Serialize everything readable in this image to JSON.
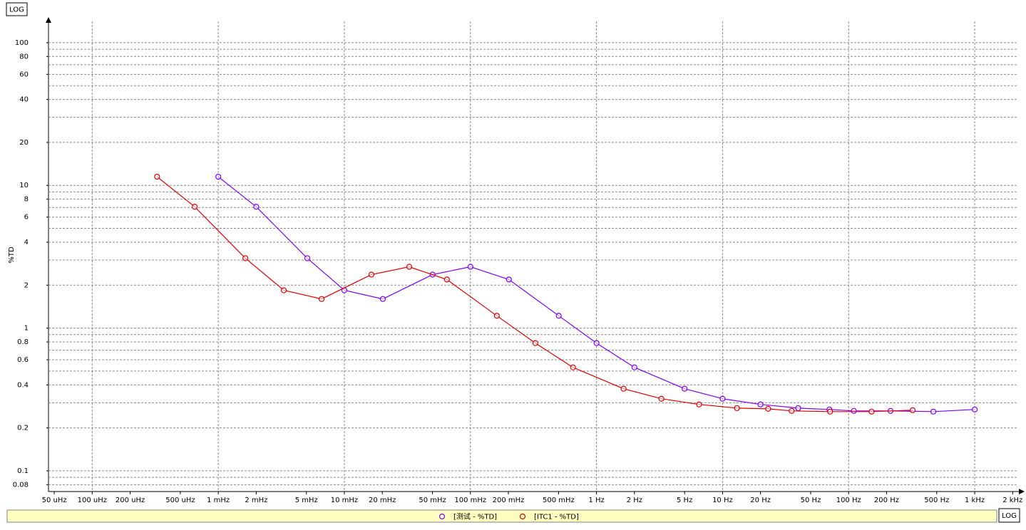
{
  "chart_data": {
    "type": "line",
    "y_label": "%TD",
    "y_scale_button": "LOG",
    "x_scale_button": "LOG",
    "xscale": "log",
    "yscale": "log",
    "grid": true,
    "xlim": [
      4.5e-05,
      2270
    ],
    "ylim": [
      0.0716,
      141
    ],
    "xticks": [
      {
        "value": 5e-05,
        "label": "50 uHz"
      },
      {
        "value": 0.0001,
        "label": "100 uHz"
      },
      {
        "value": 0.0002,
        "label": "200 uHz"
      },
      {
        "value": 0.0005,
        "label": "500 uHz"
      },
      {
        "value": 0.001,
        "label": "1 mHz"
      },
      {
        "value": 0.002,
        "label": "2 mHz"
      },
      {
        "value": 0.005,
        "label": "5 mHz"
      },
      {
        "value": 0.01,
        "label": "10 mHz"
      },
      {
        "value": 0.02,
        "label": "20 mHz"
      },
      {
        "value": 0.05,
        "label": "50 mHz"
      },
      {
        "value": 0.1,
        "label": "100 mHz"
      },
      {
        "value": 0.2,
        "label": "200 mHz"
      },
      {
        "value": 0.5,
        "label": "500 mHz"
      },
      {
        "value": 1,
        "label": "1 Hz"
      },
      {
        "value": 2,
        "label": "2 Hz"
      },
      {
        "value": 5,
        "label": "5 Hz"
      },
      {
        "value": 10,
        "label": "10 Hz"
      },
      {
        "value": 20,
        "label": "20 Hz"
      },
      {
        "value": 50,
        "label": "50 Hz"
      },
      {
        "value": 100,
        "label": "100 Hz"
      },
      {
        "value": 200,
        "label": "200 Hz"
      },
      {
        "value": 500,
        "label": "500 Hz"
      },
      {
        "value": 1000,
        "label": "1 kHz"
      },
      {
        "value": 2000,
        "label": "2 kHz"
      }
    ],
    "x_grid": [
      0.0001,
      0.001,
      0.01,
      0.1,
      1,
      10,
      100,
      1000
    ],
    "yticks": [
      100,
      80,
      60,
      40,
      20,
      10,
      8,
      6,
      4,
      2,
      1,
      0.8,
      0.6,
      0.4,
      0.2,
      0.1,
      0.08
    ],
    "y_minor_grid": [
      90,
      70,
      50,
      30,
      9,
      7,
      5,
      3,
      0.9,
      0.7,
      0.5,
      0.3,
      0.09
    ],
    "series": [
      {
        "name": "[测试 - %TD]",
        "color": "#7f00ff",
        "x": [
          0.001,
          0.002,
          0.00508,
          0.01,
          0.0202,
          0.0501,
          0.1,
          0.202,
          0.502,
          1,
          2,
          5,
          10,
          20,
          39.8,
          70.4,
          110,
          215,
          470,
          1000
        ],
        "values": [
          11.5,
          7.08,
          3.09,
          1.84,
          1.6,
          2.37,
          2.69,
          2.19,
          1.22,
          0.785,
          0.531,
          0.376,
          0.32,
          0.292,
          0.275,
          0.269,
          0.263,
          0.263,
          0.26,
          0.269
        ]
      },
      {
        "name": "[ITC1 - %TD]",
        "color": "#e00000",
        "x": [
          0.000327,
          0.00065,
          0.00164,
          0.00331,
          0.0066,
          0.0164,
          0.0327,
          0.0651,
          0.162,
          0.327,
          0.651,
          1.64,
          3.27,
          6.51,
          13,
          23,
          35.3,
          71.3,
          152,
          322
        ],
        "values": [
          11.5,
          7.08,
          3.09,
          1.84,
          1.6,
          2.37,
          2.69,
          2.19,
          1.22,
          0.785,
          0.531,
          0.376,
          0.32,
          0.292,
          0.275,
          0.272,
          0.263,
          0.26,
          0.26,
          0.266
        ]
      }
    ]
  }
}
